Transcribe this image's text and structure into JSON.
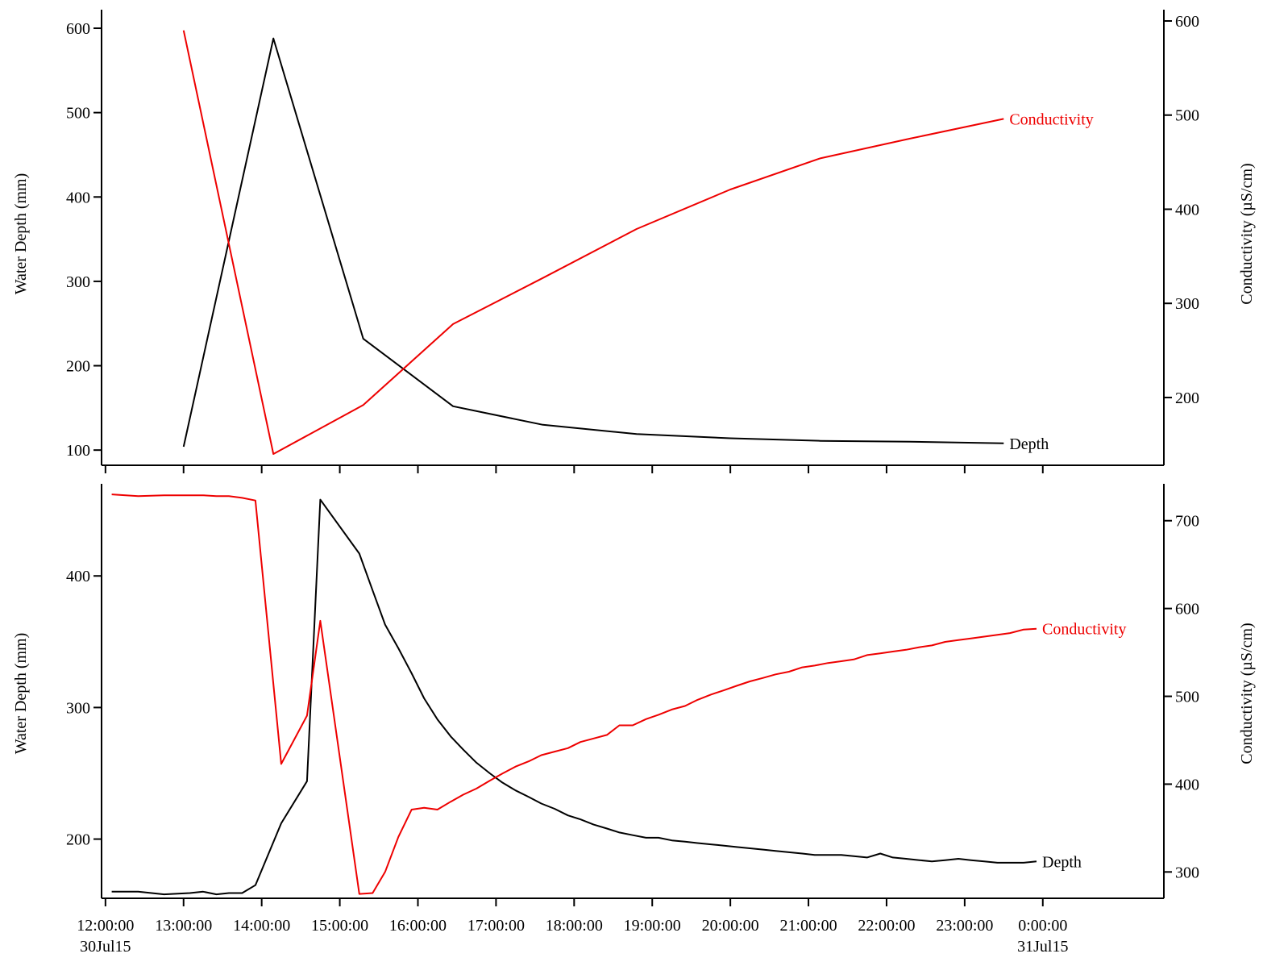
{
  "colors": {
    "depth": "#000000",
    "conductivity": "#ee0000"
  },
  "time_axis": {
    "range_hours": [
      11.95,
      25.55
    ],
    "ticks": [
      {
        "t": 12,
        "line1": "12:00:00",
        "line2": "30Jul15"
      },
      {
        "t": 13,
        "line1": "13:00:00",
        "line2": ""
      },
      {
        "t": 14,
        "line1": "14:00:00",
        "line2": ""
      },
      {
        "t": 15,
        "line1": "15:00:00",
        "line2": ""
      },
      {
        "t": 16,
        "line1": "16:00:00",
        "line2": ""
      },
      {
        "t": 17,
        "line1": "17:00:00",
        "line2": ""
      },
      {
        "t": 18,
        "line1": "18:00:00",
        "line2": ""
      },
      {
        "t": 19,
        "line1": "19:00:00",
        "line2": ""
      },
      {
        "t": 20,
        "line1": "20:00:00",
        "line2": ""
      },
      {
        "t": 21,
        "line1": "21:00:00",
        "line2": ""
      },
      {
        "t": 22,
        "line1": "22:00:00",
        "line2": ""
      },
      {
        "t": 23,
        "line1": "23:00:00",
        "line2": ""
      },
      {
        "t": 24,
        "line1": "0:00:00",
        "line2": "31Jul15"
      }
    ]
  },
  "chart_data": [
    {
      "type": "line",
      "left_axis": {
        "label": "Water Depth (mm)",
        "range": [
          82,
          622
        ],
        "ticks": [
          100,
          200,
          300,
          400,
          500,
          600
        ]
      },
      "right_axis": {
        "label": "Conductivity (µS/cm)",
        "range": [
          128,
          612
        ],
        "ticks": [
          200,
          300,
          400,
          500,
          600
        ]
      },
      "series": [
        {
          "name": "Depth",
          "axis": "left",
          "color": "#000000",
          "x": [
            13.0,
            14.15,
            15.3,
            16.45,
            17.6,
            18.8,
            20.0,
            21.15,
            22.3,
            23.5
          ],
          "y": [
            104,
            588,
            232,
            152,
            130,
            119,
            114,
            111,
            110,
            108
          ]
        },
        {
          "name": "Conductivity",
          "axis": "right",
          "color": "#ee0000",
          "x": [
            13.0,
            14.15,
            15.3,
            16.45,
            17.6,
            18.8,
            20.0,
            21.15,
            22.3,
            23.5
          ],
          "y": [
            590,
            140,
            192,
            278,
            327,
            379,
            421,
            454,
            475,
            496
          ]
        }
      ]
    },
    {
      "type": "line",
      "left_axis": {
        "label": "Water Depth (mm)",
        "range": [
          155,
          470
        ],
        "ticks": [
          200,
          300,
          400
        ]
      },
      "right_axis": {
        "label": "Conductivity (µS/cm)",
        "range": [
          270,
          742
        ],
        "ticks": [
          300,
          400,
          500,
          600,
          700
        ]
      },
      "series": [
        {
          "name": "Depth",
          "axis": "left",
          "color": "#000000",
          "x": [
            12.08,
            12.42,
            12.75,
            13.08,
            13.25,
            13.42,
            13.58,
            13.75,
            13.92,
            14.25,
            14.58,
            14.75,
            15.25,
            15.42,
            15.58,
            15.75,
            15.92,
            16.08,
            16.25,
            16.42,
            16.58,
            16.75,
            16.92,
            17.08,
            17.25,
            17.42,
            17.58,
            17.75,
            17.92,
            18.08,
            18.25,
            18.42,
            18.58,
            18.75,
            18.92,
            19.08,
            19.25,
            19.42,
            19.58,
            19.75,
            19.92,
            20.08,
            20.25,
            20.42,
            20.58,
            20.75,
            20.92,
            21.08,
            21.25,
            21.42,
            21.58,
            21.75,
            21.92,
            22.08,
            22.25,
            22.42,
            22.58,
            22.75,
            22.92,
            23.08,
            23.25,
            23.42,
            23.58,
            23.75,
            23.92
          ],
          "y": [
            160,
            160,
            158,
            159,
            160,
            158,
            159,
            159,
            165,
            212,
            244,
            458,
            417,
            389,
            363,
            345,
            326,
            307,
            291,
            278,
            268,
            258,
            250,
            243,
            237,
            232,
            227,
            223,
            218,
            215,
            211,
            208,
            205,
            203,
            201,
            201,
            199,
            198,
            197,
            196,
            195,
            194,
            193,
            192,
            191,
            190,
            189,
            188,
            188,
            188,
            187,
            186,
            189,
            186,
            185,
            184,
            183,
            184,
            185,
            184,
            183,
            182,
            182,
            182,
            183
          ]
        },
        {
          "name": "Conductivity",
          "axis": "right",
          "color": "#ee0000",
          "x": [
            12.08,
            12.42,
            12.75,
            13.08,
            13.25,
            13.42,
            13.58,
            13.75,
            13.92,
            14.25,
            14.58,
            14.75,
            15.25,
            15.42,
            15.58,
            15.75,
            15.92,
            16.08,
            16.25,
            16.42,
            16.58,
            16.75,
            16.92,
            17.08,
            17.25,
            17.42,
            17.58,
            17.75,
            17.92,
            18.08,
            18.25,
            18.42,
            18.58,
            18.75,
            18.92,
            19.08,
            19.25,
            19.42,
            19.58,
            19.75,
            19.92,
            20.08,
            20.25,
            20.42,
            20.58,
            20.75,
            20.92,
            21.08,
            21.25,
            21.42,
            21.58,
            21.75,
            21.92,
            22.08,
            22.25,
            22.42,
            22.58,
            22.75,
            22.92,
            23.08,
            23.25,
            23.42,
            23.58,
            23.75,
            23.92
          ],
          "y": [
            730,
            728,
            729,
            729,
            729,
            728,
            728,
            726,
            723,
            423,
            478,
            586,
            275,
            276,
            300,
            340,
            371,
            373,
            371,
            380,
            388,
            395,
            404,
            412,
            420,
            426,
            433,
            437,
            441,
            448,
            452,
            456,
            467,
            467,
            474,
            479,
            485,
            489,
            496,
            502,
            507,
            512,
            517,
            521,
            525,
            528,
            533,
            535,
            538,
            540,
            542,
            547,
            549,
            551,
            553,
            556,
            558,
            562,
            564,
            566,
            568,
            570,
            572,
            576,
            577
          ]
        }
      ]
    }
  ]
}
